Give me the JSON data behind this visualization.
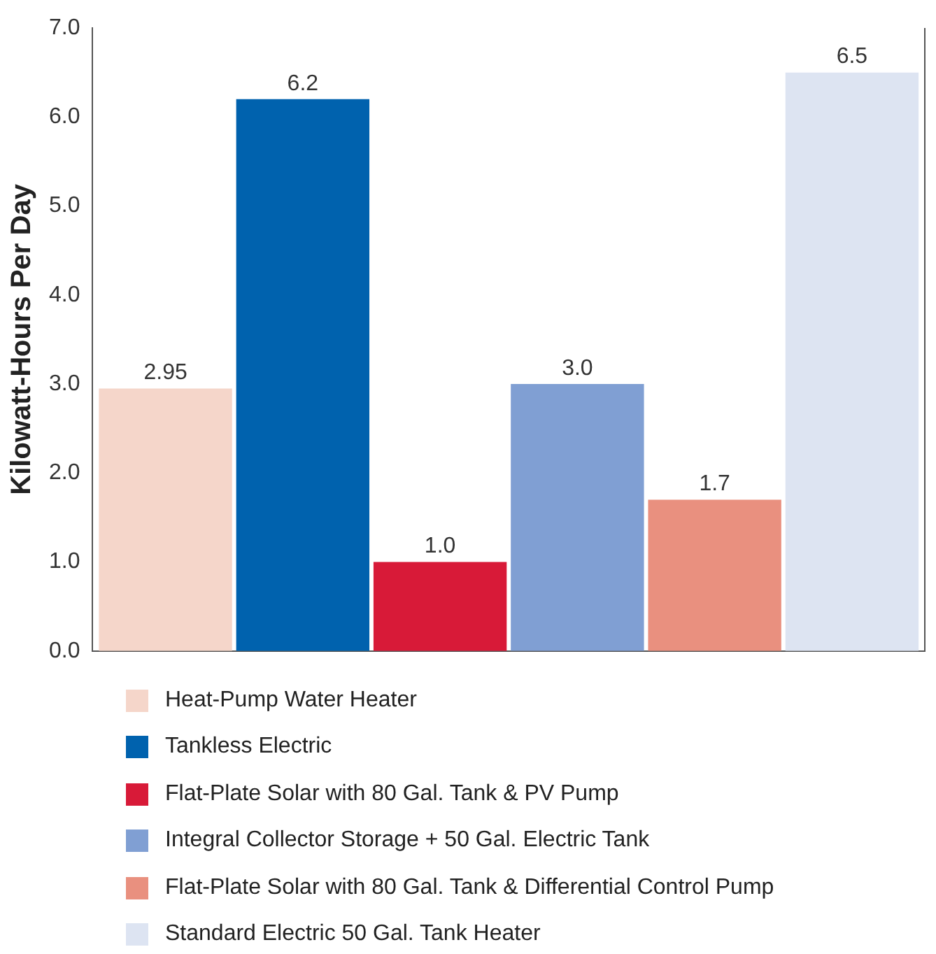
{
  "chart_data": {
    "type": "bar",
    "ylabel": "Kilowatt-Hours Per Day",
    "categories": [
      null
    ],
    "series": [
      {
        "name": "Heat-Pump Water Heater",
        "color": "#f5d6ca",
        "values": [
          2.95
        ],
        "value_labels": [
          "2.95"
        ]
      },
      {
        "name": "Tankless Electric",
        "color": "#0062ae",
        "values": [
          6.2
        ],
        "value_labels": [
          "6.2"
        ]
      },
      {
        "name": "Flat-Plate Solar with 80 Gal. Tank & PV Pump",
        "color": "#d81a38",
        "values": [
          1.0
        ],
        "value_labels": [
          "1.0"
        ]
      },
      {
        "name": "Integral Collector Storage + 50 Gal. Electric Tank",
        "color": "#809fd3",
        "values": [
          3.0
        ],
        "value_labels": [
          "3.0"
        ]
      },
      {
        "name": "Flat-Plate Solar with 80 Gal. Tank & Differential Control Pump",
        "color": "#e9907f",
        "values": [
          1.7
        ],
        "value_labels": [
          "1.7"
        ]
      },
      {
        "name": "Standard Electric 50 Gal. Tank Heater",
        "color": "#dde4f2",
        "values": [
          6.5
        ],
        "value_labels": [
          "6.5"
        ]
      }
    ],
    "ylim": [
      0,
      7
    ],
    "yticks": [
      {
        "value": 0,
        "label": "0.0"
      },
      {
        "value": 1,
        "label": "1.0"
      },
      {
        "value": 2,
        "label": "2.0"
      },
      {
        "value": 3,
        "label": "3.0"
      },
      {
        "value": 4,
        "label": "4.0"
      },
      {
        "value": 5,
        "label": "5.0"
      },
      {
        "value": 6,
        "label": "6.0"
      },
      {
        "value": 7,
        "label": "7.0"
      }
    ],
    "grid": false,
    "legend": "bottom"
  }
}
